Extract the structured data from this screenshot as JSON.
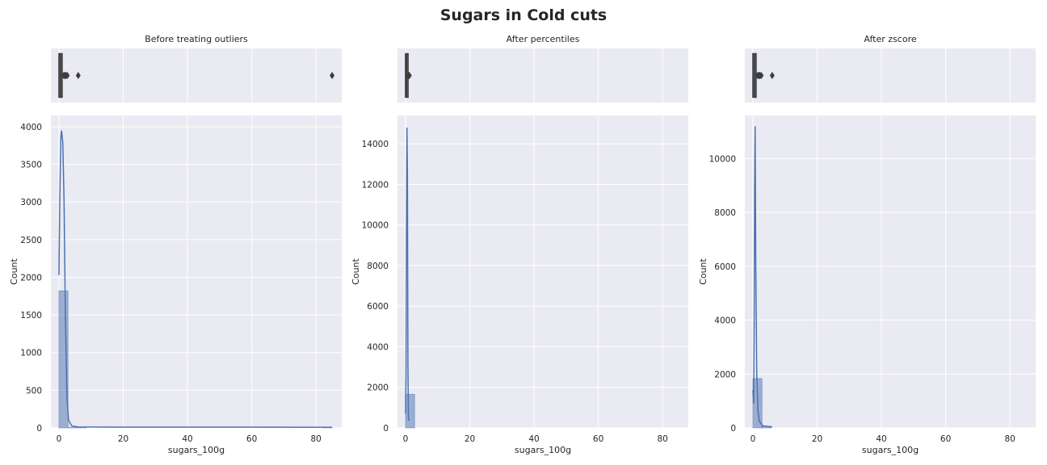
{
  "title": "Sugars in Cold cuts",
  "chart_data": [
    {
      "type": "histogram",
      "title": "Before treating outliers",
      "xlabel": "sugars_100g",
      "ylabel": "Count",
      "xlim": [
        -2.5,
        88
      ],
      "ylim": [
        0,
        4150
      ],
      "xticks": [
        0,
        20,
        40,
        60,
        80
      ],
      "yticks": [
        0,
        500,
        1000,
        1500,
        2000,
        2500,
        3000,
        3500,
        4000
      ],
      "grid": true,
      "bars": [
        {
          "x0": 0,
          "x1": 2.83,
          "count": 1820
        },
        {
          "x0": 2.83,
          "x1": 5.67,
          "count": 6
        },
        {
          "x0": 5.67,
          "x1": 8.5,
          "count": 3
        },
        {
          "x0": 82.17,
          "x1": 85.0,
          "count": 2
        }
      ],
      "kde": [
        [
          0,
          2030
        ],
        [
          0.3,
          3100
        ],
        [
          0.6,
          3850
        ],
        [
          0.8,
          3950
        ],
        [
          1.2,
          3800
        ],
        [
          1.6,
          3000
        ],
        [
          2.0,
          1500
        ],
        [
          2.5,
          400
        ],
        [
          3.0,
          100
        ],
        [
          4.0,
          25
        ],
        [
          6.0,
          12
        ],
        [
          20,
          10
        ],
        [
          40,
          9
        ],
        [
          60,
          9
        ],
        [
          85,
          8
        ]
      ],
      "boxplot": {
        "q1": 0,
        "median": 0.5,
        "q3": 1.0,
        "whisker_low": 0,
        "whisker_high": 2.5,
        "outliers": [
          1.5,
          1.8,
          2.0,
          2.2,
          2.6,
          6.0,
          85.0
        ]
      }
    },
    {
      "type": "histogram",
      "title": "After percentiles",
      "xlabel": "sugars_100g",
      "ylabel": "Count",
      "xlim": [
        -2.5,
        88
      ],
      "ylim": [
        0,
        15400
      ],
      "xticks": [
        0,
        20,
        40,
        60,
        80
      ],
      "yticks": [
        0,
        2000,
        4000,
        6000,
        8000,
        10000,
        12000,
        14000
      ],
      "grid": true,
      "bars": [
        {
          "x0": 0,
          "x1": 2.83,
          "count": 1650
        }
      ],
      "kde": [
        [
          0,
          700
        ],
        [
          0.15,
          2500
        ],
        [
          0.3,
          9800
        ],
        [
          0.45,
          14800
        ],
        [
          0.6,
          12500
        ],
        [
          0.75,
          3200
        ],
        [
          0.9,
          500
        ],
        [
          1.1,
          350
        ]
      ],
      "boxplot": {
        "q1": 0,
        "median": 0.3,
        "q3": 0.8,
        "whisker_low": 0,
        "whisker_high": 1.0,
        "outliers": [
          0.9,
          1.0,
          1.1,
          1.2
        ]
      }
    },
    {
      "type": "histogram",
      "title": "After zscore",
      "xlabel": "sugars_100g",
      "ylabel": "Count",
      "xlim": [
        -2.5,
        88
      ],
      "ylim": [
        0,
        11600
      ],
      "xticks": [
        0,
        20,
        40,
        60,
        80
      ],
      "yticks": [
        0,
        2000,
        4000,
        6000,
        8000,
        10000
      ],
      "grid": true,
      "bars": [
        {
          "x0": 0,
          "x1": 2.83,
          "count": 1830
        },
        {
          "x0": 2.83,
          "x1": 5.67,
          "count": 60
        }
      ],
      "kde": [
        [
          0,
          1400
        ],
        [
          0.25,
          900
        ],
        [
          0.4,
          4000
        ],
        [
          0.55,
          9000
        ],
        [
          0.7,
          11200
        ],
        [
          0.9,
          6000
        ],
        [
          1.2,
          2000
        ],
        [
          1.6,
          600
        ],
        [
          2.0,
          250
        ],
        [
          3.0,
          80
        ],
        [
          6.0,
          30
        ]
      ],
      "boxplot": {
        "q1": 0,
        "median": 0.5,
        "q3": 1.0,
        "whisker_low": 0,
        "whisker_high": 2.5,
        "outliers": [
          1.5,
          1.8,
          2.0,
          2.2,
          2.6,
          6.0
        ]
      }
    }
  ]
}
